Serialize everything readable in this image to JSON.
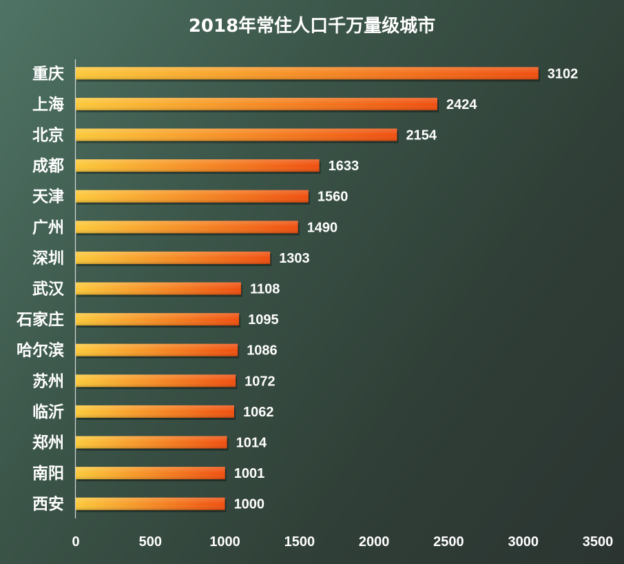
{
  "chart_data": {
    "type": "bar",
    "orientation": "horizontal",
    "title": "2018年常住人口千万量级城市",
    "categories": [
      "重庆",
      "上海",
      "北京",
      "成都",
      "天津",
      "广州",
      "深圳",
      "武汉",
      "石家庄",
      "哈尔滨",
      "苏州",
      "临沂",
      "郑州",
      "南阳",
      "西安"
    ],
    "values": [
      3102,
      2424,
      2154,
      1633,
      1560,
      1490,
      1303,
      1108,
      1095,
      1086,
      1072,
      1062,
      1014,
      1001,
      1000
    ],
    "xlim": [
      0,
      3500
    ],
    "xticks": [
      0,
      500,
      1000,
      1500,
      2000,
      2500,
      3000,
      3500
    ],
    "xticklabels": [
      "0",
      "500",
      "1000",
      "1500",
      "2000",
      "2500",
      "3000",
      "3500"
    ],
    "xlabel": "",
    "ylabel": "",
    "grid": false,
    "legend": "none",
    "bar_gradient": [
      "#fcc93a",
      "#ef4f0f"
    ]
  }
}
